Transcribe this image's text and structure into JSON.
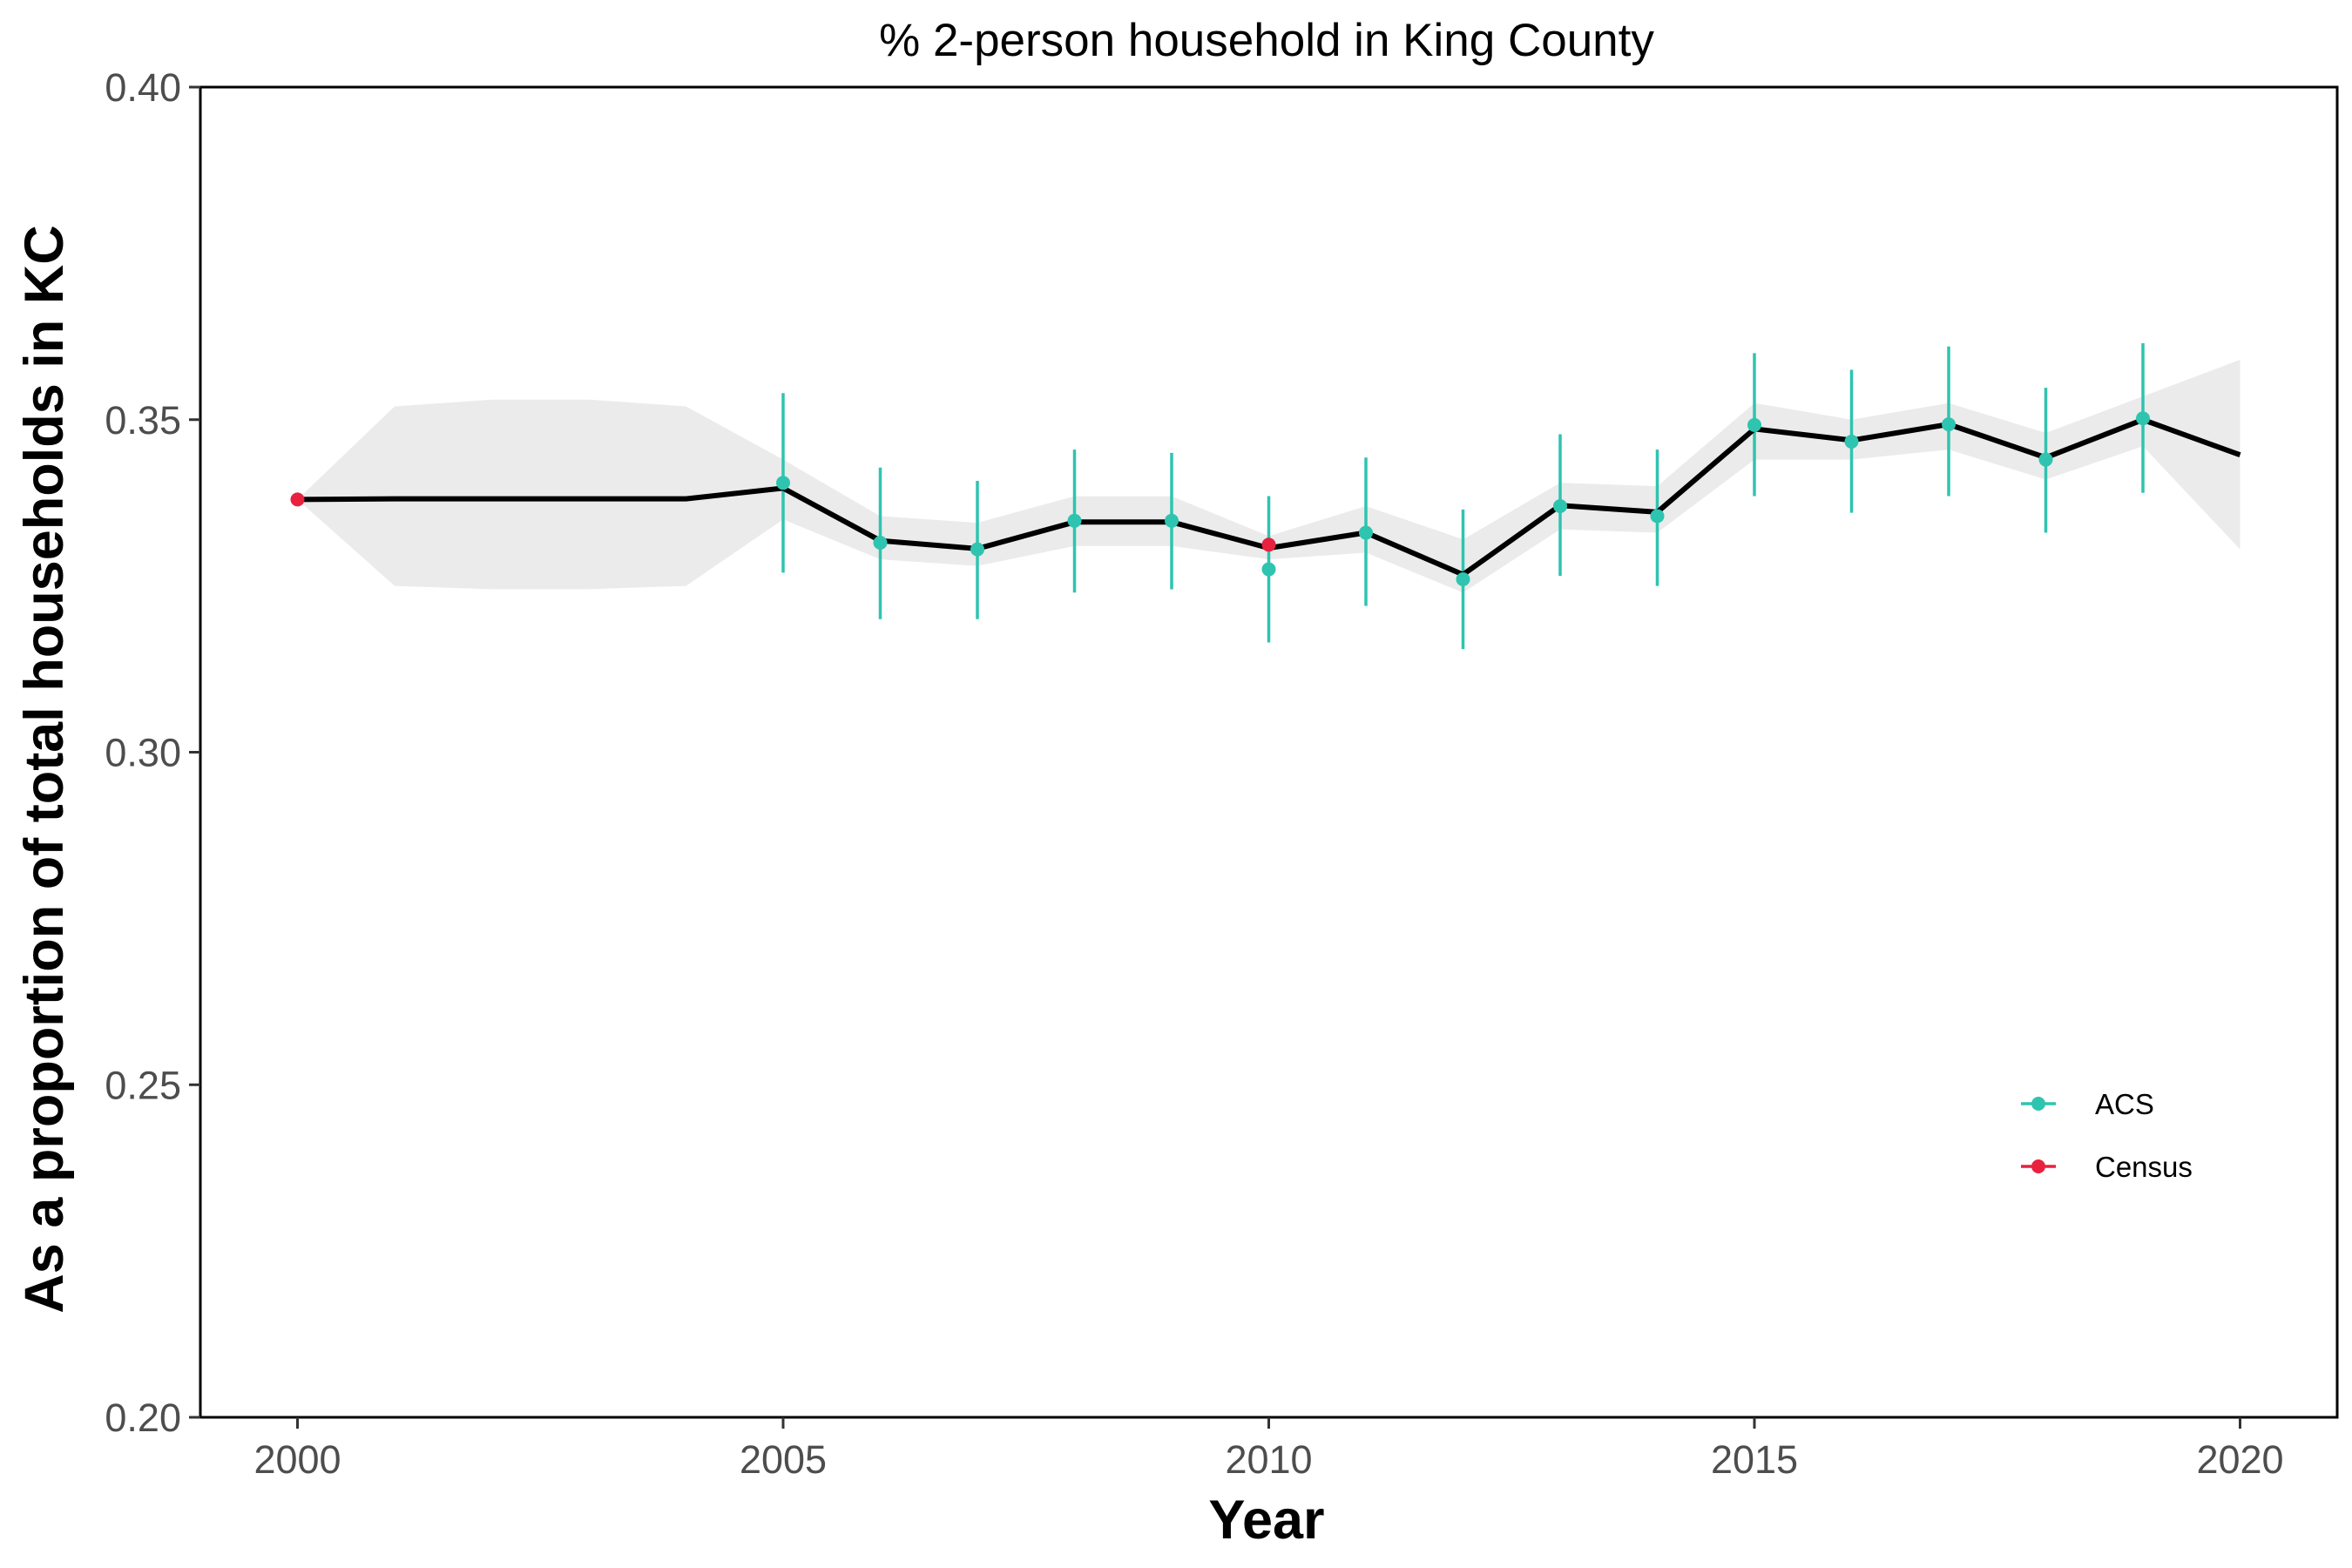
{
  "chart_data": {
    "type": "line",
    "title": "% 2-person household in King County",
    "xlabel": "Year",
    "ylabel": "As a proportion of total households in KC",
    "xlim": [
      1999,
      2021
    ],
    "ylim": [
      0.2,
      0.4
    ],
    "x_ticks": [
      2000,
      2005,
      2010,
      2015,
      2020
    ],
    "y_ticks": [
      0.2,
      0.25,
      0.3,
      0.35,
      0.4
    ],
    "x_tick_labels": [
      "2000",
      "2005",
      "2010",
      "2015",
      "2020"
    ],
    "y_tick_labels": [
      "0.20",
      "0.25",
      "0.30",
      "0.35",
      "0.40"
    ],
    "grid": false,
    "legend_position": "right",
    "trend": {
      "x": [
        2000,
        2001,
        2002,
        2003,
        2004,
        2005,
        2006,
        2007,
        2008,
        2009,
        2010,
        2011,
        2012,
        2013,
        2014,
        2015,
        2016,
        2017,
        2018,
        2019,
        2020
      ],
      "y": [
        0.338,
        0.3381,
        0.3381,
        0.3381,
        0.3381,
        0.3397,
        0.3318,
        0.3306,
        0.3346,
        0.3346,
        0.3307,
        0.333,
        0.3267,
        0.3371,
        0.3361,
        0.3486,
        0.3469,
        0.3493,
        0.3443,
        0.35,
        0.3447
      ],
      "lower": [
        0.338,
        0.325,
        0.3245,
        0.3245,
        0.325,
        0.335,
        0.329,
        0.328,
        0.331,
        0.331,
        0.329,
        0.33,
        0.324,
        0.3335,
        0.333,
        0.344,
        0.344,
        0.3455,
        0.341,
        0.346,
        0.3305
      ],
      "upper": [
        0.338,
        0.352,
        0.353,
        0.353,
        0.352,
        0.344,
        0.3355,
        0.3345,
        0.3385,
        0.3385,
        0.3325,
        0.337,
        0.332,
        0.3405,
        0.34,
        0.3525,
        0.35,
        0.3525,
        0.348,
        0.3535,
        0.359
      ],
      "color": "#000000",
      "band_color": "#ebebeb"
    },
    "series": [
      {
        "name": "ACS",
        "color": "#2ec4b0",
        "x": [
          2005,
          2006,
          2007,
          2008,
          2009,
          2010,
          2011,
          2012,
          2013,
          2014,
          2015,
          2016,
          2017,
          2018,
          2019
        ],
        "y": [
          0.3405,
          0.3315,
          0.3305,
          0.3348,
          0.3348,
          0.3275,
          0.333,
          0.326,
          0.337,
          0.3355,
          0.3492,
          0.3467,
          0.3493,
          0.344,
          0.3502
        ],
        "err_low": [
          0.327,
          0.32,
          0.32,
          0.324,
          0.3245,
          0.3165,
          0.322,
          0.3155,
          0.3265,
          0.325,
          0.3385,
          0.336,
          0.3385,
          0.333,
          0.339
        ],
        "err_high": [
          0.354,
          0.3428,
          0.3408,
          0.3455,
          0.345,
          0.3385,
          0.3443,
          0.3365,
          0.3478,
          0.3455,
          0.36,
          0.3575,
          0.361,
          0.3548,
          0.3615
        ]
      },
      {
        "name": "Census",
        "color": "#e8213f",
        "x": [
          2000,
          2010
        ],
        "y": [
          0.338,
          0.3312
        ]
      }
    ]
  }
}
